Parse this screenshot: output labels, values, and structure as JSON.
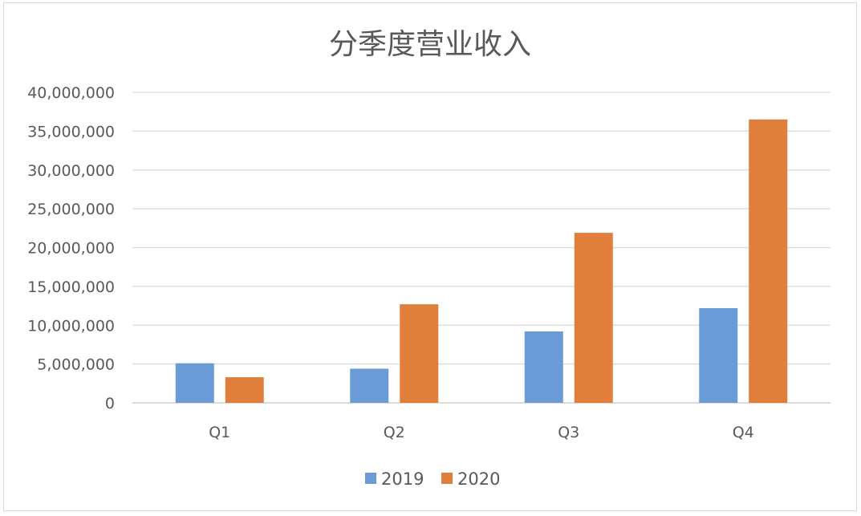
{
  "chart_data": {
    "type": "bar",
    "title": "分季度营业收入",
    "categories": [
      "Q1",
      "Q2",
      "Q3",
      "Q4"
    ],
    "series": [
      {
        "name": "2019",
        "color": "#6a9bd6",
        "values": [
          5100000,
          4400000,
          9200000,
          12200000
        ]
      },
      {
        "name": "2020",
        "color": "#e07f3c",
        "values": [
          3300000,
          12700000,
          21900000,
          36500000
        ]
      }
    ],
    "ylim": [
      0,
      40000000
    ],
    "yticks": [
      0,
      5000000,
      10000000,
      15000000,
      20000000,
      25000000,
      30000000,
      35000000,
      40000000
    ],
    "ytick_labels": [
      "0",
      "5,000,000",
      "10,000,000",
      "15,000,000",
      "20,000,000",
      "25,000,000",
      "30,000,000",
      "35,000,000",
      "40,000,000"
    ],
    "grid": true,
    "legend_position": "bottom",
    "colors": {
      "grid": "#d9d9d9",
      "axis": "#d0d0d0",
      "text": "#595959"
    }
  }
}
